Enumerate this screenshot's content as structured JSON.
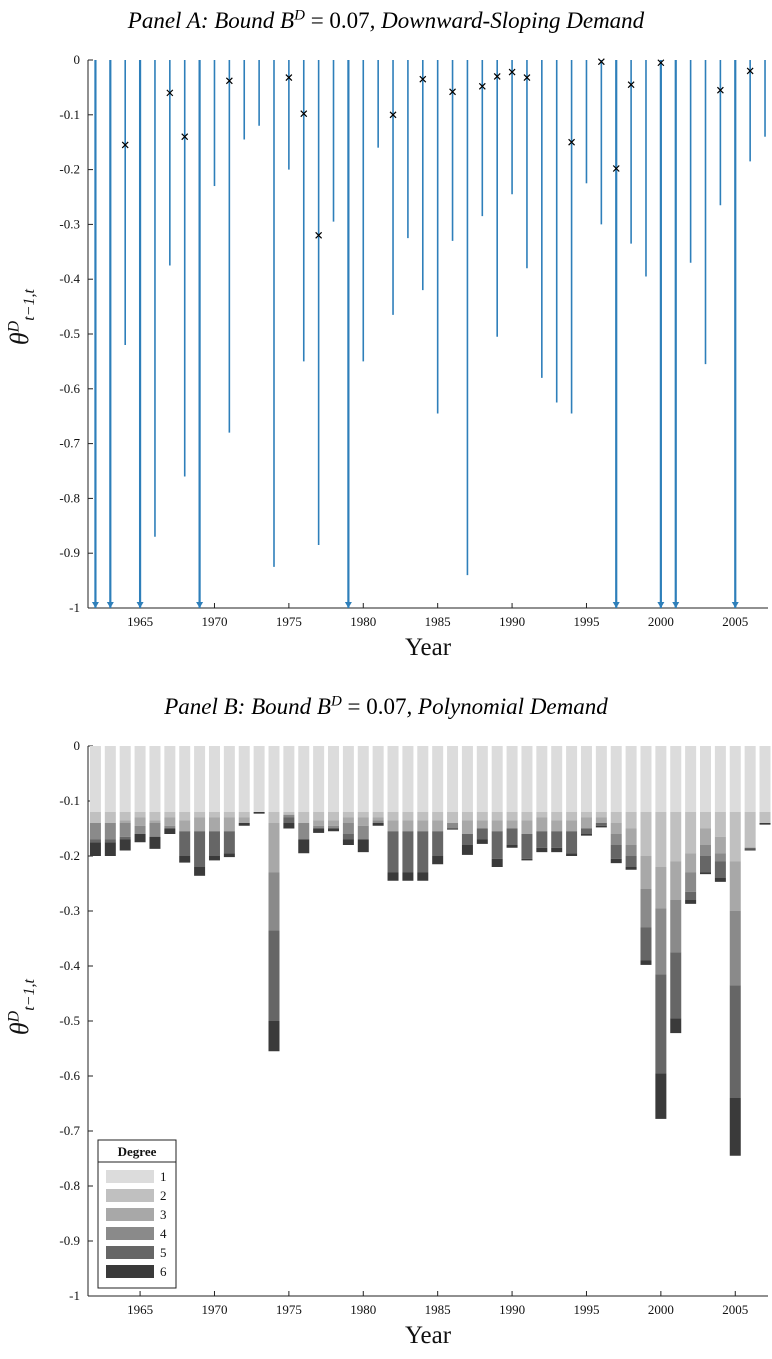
{
  "panel_a": {
    "title_prefix": "Panel A: Bound B",
    "title_sup": "D",
    "title_eq": " = 0.07",
    "title_suffix": ", Downward-Sloping Demand"
  },
  "panel_b": {
    "title_prefix": "Panel B: Bound B",
    "title_sup": "D",
    "title_eq": " = 0.07",
    "title_suffix": ", Polynomial Demand"
  },
  "ylabel_main": "θ",
  "ylabel_sup": "D",
  "ylabel_sub": "t−1,t",
  "colors": {
    "stem": "#2e7fba",
    "marker": "#000000",
    "degree": [
      "#dcdcdc",
      "#c0c0c0",
      "#a8a8a8",
      "#8a8a8a",
      "#666666",
      "#3a3a3a"
    ]
  },
  "chart_data": [
    {
      "type": "stem",
      "title": "Panel A: Bound B^D = 0.07, Downward-Sloping Demand",
      "xlabel": "Year",
      "ylabel": "θ^D_{t−1,t}",
      "xlim": [
        1961.5,
        2007.2
      ],
      "ylim": [
        -1,
        0
      ],
      "xticks": [
        1965,
        1970,
        1975,
        1980,
        1985,
        1990,
        1995,
        2000,
        2005
      ],
      "xtick_labels": [
        "1965",
        "1970",
        "1975",
        "1980",
        "1985",
        "1990",
        "1995",
        "2000",
        "2005"
      ],
      "yticks": [
        0,
        -0.1,
        -0.2,
        -0.3,
        -0.4,
        -0.5,
        -0.6,
        -0.7,
        -0.8,
        -0.9,
        -1
      ],
      "ytick_labels": [
        "0",
        "-0.1",
        "-0.2",
        "-0.3",
        "-0.4",
        "-0.5",
        "-0.6",
        "-0.7",
        "-0.8",
        "-0.9",
        "-1"
      ],
      "points": [
        {
          "year": 1962,
          "lower": -1,
          "arrow": true,
          "marker": null
        },
        {
          "year": 1963,
          "lower": -1,
          "arrow": true,
          "marker": null
        },
        {
          "year": 1964,
          "lower": -0.52,
          "arrow": false,
          "marker": -0.155
        },
        {
          "year": 1965,
          "lower": -1,
          "arrow": true,
          "marker": null
        },
        {
          "year": 1966,
          "lower": -0.87,
          "arrow": false,
          "marker": null
        },
        {
          "year": 1967,
          "lower": -0.375,
          "arrow": false,
          "marker": -0.06
        },
        {
          "year": 1968,
          "lower": -0.76,
          "arrow": false,
          "marker": -0.14
        },
        {
          "year": 1969,
          "lower": -1,
          "arrow": true,
          "marker": null
        },
        {
          "year": 1970,
          "lower": -0.23,
          "arrow": false,
          "marker": null
        },
        {
          "year": 1971,
          "lower": -0.68,
          "arrow": false,
          "marker": -0.038
        },
        {
          "year": 1972,
          "lower": -0.145,
          "arrow": false,
          "marker": null
        },
        {
          "year": 1973,
          "lower": -0.12,
          "arrow": false,
          "marker": null
        },
        {
          "year": 1974,
          "lower": -0.925,
          "arrow": false,
          "marker": null
        },
        {
          "year": 1975,
          "lower": -0.2,
          "arrow": false,
          "marker": -0.032
        },
        {
          "year": 1976,
          "lower": -0.55,
          "arrow": false,
          "marker": -0.098
        },
        {
          "year": 1977,
          "lower": -0.885,
          "arrow": false,
          "marker": -0.32
        },
        {
          "year": 1978,
          "lower": -0.295,
          "arrow": false,
          "marker": null
        },
        {
          "year": 1979,
          "lower": -1,
          "arrow": true,
          "marker": null
        },
        {
          "year": 1980,
          "lower": -0.55,
          "arrow": false,
          "marker": null
        },
        {
          "year": 1981,
          "lower": -0.16,
          "arrow": false,
          "marker": null
        },
        {
          "year": 1982,
          "lower": -0.465,
          "arrow": false,
          "marker": -0.1
        },
        {
          "year": 1983,
          "lower": -0.325,
          "arrow": false,
          "marker": null
        },
        {
          "year": 1984,
          "lower": -0.42,
          "arrow": false,
          "marker": -0.035
        },
        {
          "year": 1985,
          "lower": -0.645,
          "arrow": false,
          "marker": null
        },
        {
          "year": 1986,
          "lower": -0.33,
          "arrow": false,
          "marker": -0.058
        },
        {
          "year": 1987,
          "lower": -0.94,
          "arrow": false,
          "marker": null
        },
        {
          "year": 1988,
          "lower": -0.285,
          "arrow": false,
          "marker": -0.048
        },
        {
          "year": 1989,
          "lower": -0.505,
          "arrow": false,
          "marker": -0.03
        },
        {
          "year": 1990,
          "lower": -0.245,
          "arrow": false,
          "marker": -0.022
        },
        {
          "year": 1991,
          "lower": -0.38,
          "arrow": false,
          "marker": -0.032
        },
        {
          "year": 1992,
          "lower": -0.58,
          "arrow": false,
          "marker": null
        },
        {
          "year": 1993,
          "lower": -0.625,
          "arrow": false,
          "marker": null
        },
        {
          "year": 1994,
          "lower": -0.645,
          "arrow": false,
          "marker": -0.15
        },
        {
          "year": 1995,
          "lower": -0.225,
          "arrow": false,
          "marker": null
        },
        {
          "year": 1996,
          "lower": -0.3,
          "arrow": false,
          "marker": -0.003
        },
        {
          "year": 1997,
          "lower": -1,
          "arrow": true,
          "marker": -0.198
        },
        {
          "year": 1998,
          "lower": -0.335,
          "arrow": false,
          "marker": -0.045
        },
        {
          "year": 1999,
          "lower": -0.395,
          "arrow": false,
          "marker": null
        },
        {
          "year": 2000,
          "lower": -1,
          "arrow": true,
          "marker": -0.005
        },
        {
          "year": 2001,
          "lower": -1,
          "arrow": true,
          "marker": null
        },
        {
          "year": 2002,
          "lower": -0.37,
          "arrow": false,
          "marker": null
        },
        {
          "year": 2003,
          "lower": -0.555,
          "arrow": false,
          "marker": null
        },
        {
          "year": 2004,
          "lower": -0.265,
          "arrow": false,
          "marker": -0.055
        },
        {
          "year": 2005,
          "lower": -1,
          "arrow": true,
          "marker": null
        },
        {
          "year": 2006,
          "lower": -0.185,
          "arrow": false,
          "marker": -0.02
        },
        {
          "year": 2007,
          "lower": -0.14,
          "arrow": false,
          "marker": null
        }
      ]
    },
    {
      "type": "bar",
      "stacked": true,
      "title": "Panel B: Bound B^D = 0.07, Polynomial Demand",
      "xlabel": "Year",
      "ylabel": "θ^D_{t−1,t}",
      "xlim": [
        1961.5,
        2007.2
      ],
      "ylim": [
        -1,
        0
      ],
      "xticks": [
        1965,
        1970,
        1975,
        1980,
        1985,
        1990,
        1995,
        2000,
        2005
      ],
      "xtick_labels": [
        "1965",
        "1970",
        "1975",
        "1980",
        "1985",
        "1990",
        "1995",
        "2000",
        "2005"
      ],
      "yticks": [
        0,
        -0.1,
        -0.2,
        -0.3,
        -0.4,
        -0.5,
        -0.6,
        -0.7,
        -0.8,
        -0.9,
        -1
      ],
      "ytick_labels": [
        "0",
        "-0.1",
        "-0.2",
        "-0.3",
        "-0.4",
        "-0.5",
        "-0.6",
        "-0.7",
        "-0.8",
        "-0.9",
        "-1"
      ],
      "legend": {
        "title": "Degree",
        "entries": [
          "1",
          "2",
          "3",
          "4",
          "5",
          "6"
        ],
        "placement": "bottom-left"
      },
      "stacks": [
        {
          "year": 1962,
          "bounds": [
            -0.12,
            -0.14,
            -0.14,
            -0.17,
            -0.175,
            -0.2
          ]
        },
        {
          "year": 1963,
          "bounds": [
            -0.12,
            -0.14,
            -0.14,
            -0.17,
            -0.175,
            -0.2
          ]
        },
        {
          "year": 1964,
          "bounds": [
            -0.12,
            -0.135,
            -0.14,
            -0.165,
            -0.17,
            -0.19
          ]
        },
        {
          "year": 1965,
          "bounds": [
            -0.12,
            -0.13,
            -0.145,
            -0.16,
            -0.16,
            -0.175
          ]
        },
        {
          "year": 1966,
          "bounds": [
            -0.12,
            -0.135,
            -0.14,
            -0.165,
            -0.165,
            -0.187
          ]
        },
        {
          "year": 1967,
          "bounds": [
            -0.12,
            -0.13,
            -0.145,
            -0.15,
            -0.15,
            -0.16
          ]
        },
        {
          "year": 1968,
          "bounds": [
            -0.12,
            -0.135,
            -0.155,
            -0.155,
            -0.2,
            -0.212
          ]
        },
        {
          "year": 1969,
          "bounds": [
            -0.12,
            -0.13,
            -0.155,
            -0.155,
            -0.22,
            -0.236
          ]
        },
        {
          "year": 1970,
          "bounds": [
            -0.12,
            -0.13,
            -0.155,
            -0.155,
            -0.2,
            -0.208
          ]
        },
        {
          "year": 1971,
          "bounds": [
            -0.12,
            -0.13,
            -0.155,
            -0.155,
            -0.195,
            -0.202
          ]
        },
        {
          "year": 1972,
          "bounds": [
            -0.12,
            -0.13,
            -0.14,
            -0.14,
            -0.14,
            -0.145
          ]
        },
        {
          "year": 1973,
          "bounds": [
            -0.12,
            -0.12,
            -0.12,
            -0.12,
            -0.12,
            -0.123
          ]
        },
        {
          "year": 1974,
          "bounds": [
            -0.12,
            -0.14,
            -0.23,
            -0.335,
            -0.5,
            -0.555
          ]
        },
        {
          "year": 1975,
          "bounds": [
            -0.12,
            -0.125,
            -0.125,
            -0.13,
            -0.14,
            -0.15
          ]
        },
        {
          "year": 1976,
          "bounds": [
            -0.12,
            -0.14,
            -0.14,
            -0.17,
            -0.17,
            -0.195
          ]
        },
        {
          "year": 1977,
          "bounds": [
            -0.12,
            -0.135,
            -0.145,
            -0.15,
            -0.15,
            -0.158
          ]
        },
        {
          "year": 1978,
          "bounds": [
            -0.12,
            -0.135,
            -0.145,
            -0.15,
            -0.15,
            -0.155
          ]
        },
        {
          "year": 1979,
          "bounds": [
            -0.12,
            -0.13,
            -0.14,
            -0.16,
            -0.17,
            -0.18
          ]
        },
        {
          "year": 1980,
          "bounds": [
            -0.12,
            -0.13,
            -0.145,
            -0.17,
            -0.17,
            -0.193
          ]
        },
        {
          "year": 1981,
          "bounds": [
            -0.12,
            -0.13,
            -0.135,
            -0.14,
            -0.14,
            -0.145
          ]
        },
        {
          "year": 1982,
          "bounds": [
            -0.12,
            -0.135,
            -0.155,
            -0.155,
            -0.23,
            -0.245
          ]
        },
        {
          "year": 1983,
          "bounds": [
            -0.12,
            -0.135,
            -0.155,
            -0.155,
            -0.23,
            -0.245
          ]
        },
        {
          "year": 1984,
          "bounds": [
            -0.12,
            -0.135,
            -0.155,
            -0.155,
            -0.23,
            -0.245
          ]
        },
        {
          "year": 1985,
          "bounds": [
            -0.12,
            -0.135,
            -0.155,
            -0.155,
            -0.2,
            -0.215
          ]
        },
        {
          "year": 1986,
          "bounds": [
            -0.12,
            -0.14,
            -0.14,
            -0.15,
            -0.15,
            -0.152
          ]
        },
        {
          "year": 1987,
          "bounds": [
            -0.12,
            -0.135,
            -0.16,
            -0.16,
            -0.18,
            -0.198
          ]
        },
        {
          "year": 1988,
          "bounds": [
            -0.12,
            -0.135,
            -0.15,
            -0.15,
            -0.17,
            -0.178
          ]
        },
        {
          "year": 1989,
          "bounds": [
            -0.12,
            -0.135,
            -0.155,
            -0.155,
            -0.205,
            -0.22
          ]
        },
        {
          "year": 1990,
          "bounds": [
            -0.12,
            -0.135,
            -0.15,
            -0.15,
            -0.18,
            -0.185
          ]
        },
        {
          "year": 1991,
          "bounds": [
            -0.12,
            -0.135,
            -0.16,
            -0.16,
            -0.205,
            -0.208
          ]
        },
        {
          "year": 1992,
          "bounds": [
            -0.12,
            -0.13,
            -0.155,
            -0.155,
            -0.185,
            -0.193
          ]
        },
        {
          "year": 1993,
          "bounds": [
            -0.12,
            -0.135,
            -0.155,
            -0.155,
            -0.185,
            -0.193
          ]
        },
        {
          "year": 1994,
          "bounds": [
            -0.12,
            -0.135,
            -0.155,
            -0.155,
            -0.195,
            -0.2
          ]
        },
        {
          "year": 1995,
          "bounds": [
            -0.12,
            -0.13,
            -0.15,
            -0.15,
            -0.16,
            -0.163
          ]
        },
        {
          "year": 1996,
          "bounds": [
            -0.12,
            -0.13,
            -0.14,
            -0.14,
            -0.145,
            -0.148
          ]
        },
        {
          "year": 1997,
          "bounds": [
            -0.12,
            -0.14,
            -0.16,
            -0.18,
            -0.205,
            -0.213
          ]
        },
        {
          "year": 1998,
          "bounds": [
            -0.12,
            -0.15,
            -0.18,
            -0.2,
            -0.22,
            -0.225
          ]
        },
        {
          "year": 1999,
          "bounds": [
            -0.12,
            -0.2,
            -0.26,
            -0.33,
            -0.39,
            -0.398
          ]
        },
        {
          "year": 2000,
          "bounds": [
            -0.12,
            -0.22,
            -0.295,
            -0.415,
            -0.595,
            -0.678
          ]
        },
        {
          "year": 2001,
          "bounds": [
            -0.12,
            -0.21,
            -0.28,
            -0.375,
            -0.495,
            -0.522
          ]
        },
        {
          "year": 2002,
          "bounds": [
            -0.12,
            -0.195,
            -0.23,
            -0.265,
            -0.28,
            -0.287
          ]
        },
        {
          "year": 2003,
          "bounds": [
            -0.12,
            -0.15,
            -0.18,
            -0.2,
            -0.23,
            -0.233
          ]
        },
        {
          "year": 2004,
          "bounds": [
            -0.12,
            -0.165,
            -0.195,
            -0.21,
            -0.24,
            -0.247
          ]
        },
        {
          "year": 2005,
          "bounds": [
            -0.12,
            -0.21,
            -0.3,
            -0.435,
            -0.64,
            -0.745
          ]
        },
        {
          "year": 2006,
          "bounds": [
            -0.12,
            -0.185,
            -0.185,
            -0.185,
            -0.188,
            -0.19
          ]
        },
        {
          "year": 2007,
          "bounds": [
            -0.12,
            -0.14,
            -0.14,
            -0.14,
            -0.14,
            -0.143
          ]
        }
      ]
    }
  ]
}
